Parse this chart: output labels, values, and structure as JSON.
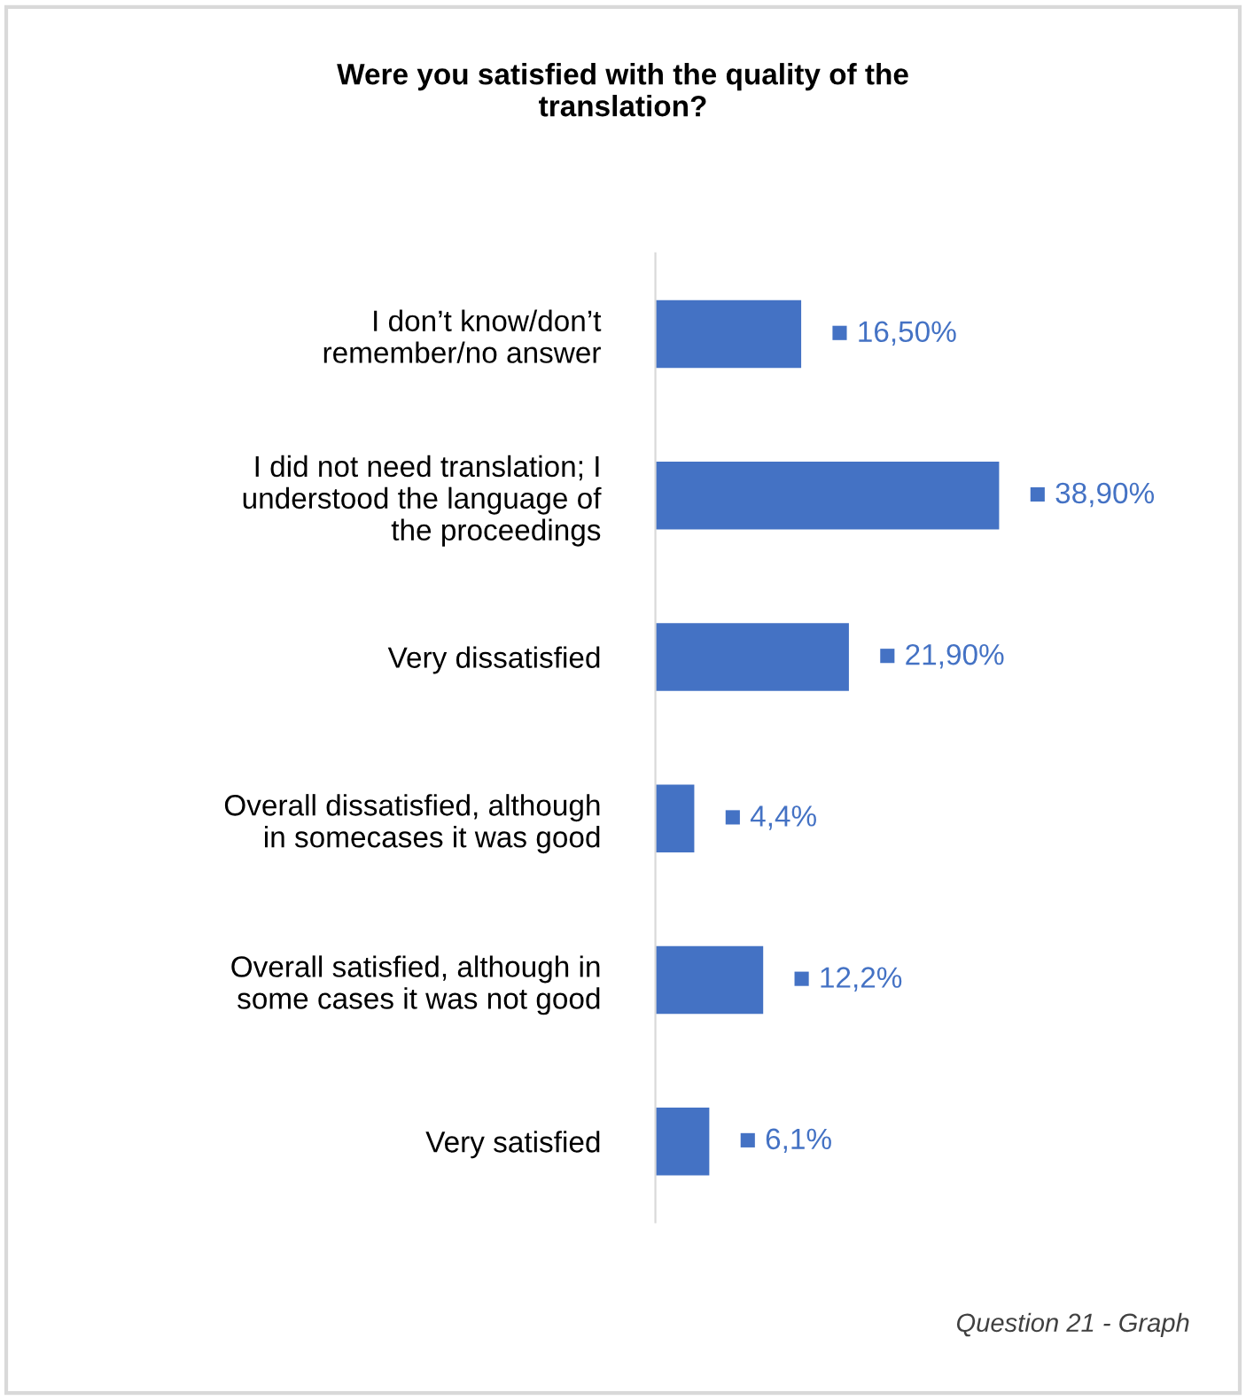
{
  "chart_data": {
    "type": "bar",
    "orientation": "horizontal",
    "title": "Were you satisfied with the quality of the\ntranslation?",
    "categories": [
      "I don’t know/don’t\nremember/no answer",
      "I did not need translation; I\nunderstood the language of\nthe proceedings",
      "Very dissatisfied",
      "Overall dissatisfied, although\nin somecases it was good",
      "Overall satisfied, although in\nsome cases it was not good",
      "Very satisfied"
    ],
    "values": [
      16.5,
      38.9,
      21.9,
      4.4,
      12.2,
      6.1
    ],
    "value_labels": [
      "■ 16,50%",
      "■ 38,90%",
      "■ 21,90%",
      "■ 4,4%",
      "■ 12,2%",
      "■ 6,1%"
    ],
    "color": "#4472c4",
    "tick_labels": "y",
    "grid": false,
    "legend": false,
    "annotations": [
      "Question 21 - Graph"
    ]
  }
}
